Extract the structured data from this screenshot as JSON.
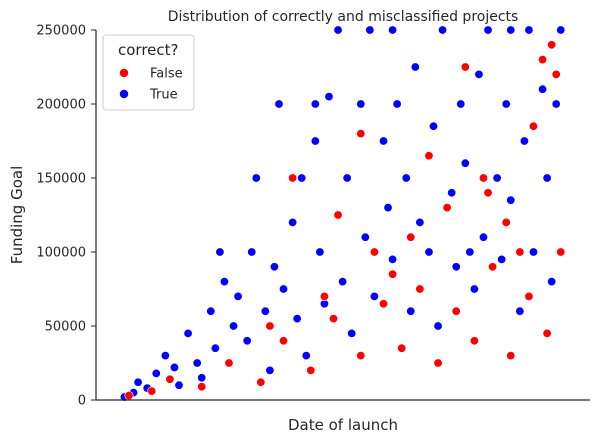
{
  "chart_data": {
    "type": "scatter",
    "title": "Distribution of correctly and misclassified projects",
    "xlabel": "Date of launch",
    "ylabel": "Funding Goal",
    "ylim": [
      0,
      250000
    ],
    "yticks": [
      "0",
      "50000",
      "100000",
      "150000",
      "200000",
      "250000"
    ],
    "xticks_shown": false,
    "grid": false,
    "legend": {
      "title": "correct?",
      "placement": "top-left",
      "entries": [
        {
          "label": "False",
          "color": "#ff0000"
        },
        {
          "label": "True",
          "color": "#0000ff"
        }
      ]
    },
    "series": [
      {
        "name": "True",
        "color": "#0000ff",
        "points": [
          [
            0.03,
            2000
          ],
          [
            0.05,
            5000
          ],
          [
            0.06,
            12000
          ],
          [
            0.08,
            8000
          ],
          [
            0.1,
            18000
          ],
          [
            0.12,
            30000
          ],
          [
            0.14,
            22000
          ],
          [
            0.15,
            10000
          ],
          [
            0.17,
            45000
          ],
          [
            0.19,
            25000
          ],
          [
            0.2,
            15000
          ],
          [
            0.22,
            60000
          ],
          [
            0.23,
            35000
          ],
          [
            0.24,
            100000
          ],
          [
            0.25,
            80000
          ],
          [
            0.27,
            50000
          ],
          [
            0.28,
            70000
          ],
          [
            0.3,
            40000
          ],
          [
            0.31,
            100000
          ],
          [
            0.32,
            150000
          ],
          [
            0.34,
            60000
          ],
          [
            0.35,
            20000
          ],
          [
            0.36,
            90000
          ],
          [
            0.37,
            200000
          ],
          [
            0.38,
            75000
          ],
          [
            0.4,
            120000
          ],
          [
            0.41,
            55000
          ],
          [
            0.42,
            150000
          ],
          [
            0.43,
            30000
          ],
          [
            0.45,
            175000
          ],
          [
            0.46,
            100000
          ],
          [
            0.47,
            65000
          ],
          [
            0.48,
            205000
          ],
          [
            0.5,
            125000
          ],
          [
            0.51,
            80000
          ],
          [
            0.52,
            150000
          ],
          [
            0.53,
            45000
          ],
          [
            0.55,
            200000
          ],
          [
            0.56,
            110000
          ],
          [
            0.57,
            250000
          ],
          [
            0.58,
            70000
          ],
          [
            0.6,
            175000
          ],
          [
            0.61,
            130000
          ],
          [
            0.62,
            95000
          ],
          [
            0.63,
            200000
          ],
          [
            0.65,
            150000
          ],
          [
            0.66,
            60000
          ],
          [
            0.67,
            225000
          ],
          [
            0.68,
            120000
          ],
          [
            0.7,
            100000
          ],
          [
            0.71,
            185000
          ],
          [
            0.72,
            50000
          ],
          [
            0.73,
            250000
          ],
          [
            0.75,
            140000
          ],
          [
            0.76,
            90000
          ],
          [
            0.77,
            200000
          ],
          [
            0.78,
            160000
          ],
          [
            0.8,
            75000
          ],
          [
            0.81,
            220000
          ],
          [
            0.82,
            110000
          ],
          [
            0.83,
            250000
          ],
          [
            0.85,
            150000
          ],
          [
            0.86,
            95000
          ],
          [
            0.87,
            200000
          ],
          [
            0.88,
            135000
          ],
          [
            0.9,
            60000
          ],
          [
            0.91,
            175000
          ],
          [
            0.92,
            250000
          ],
          [
            0.93,
            100000
          ],
          [
            0.95,
            210000
          ],
          [
            0.96,
            150000
          ],
          [
            0.97,
            80000
          ],
          [
            0.98,
            200000
          ],
          [
            0.99,
            250000
          ],
          [
            0.5,
            250000
          ],
          [
            0.62,
            250000
          ],
          [
            0.88,
            250000
          ],
          [
            0.45,
            200000
          ],
          [
            0.58,
            100000
          ],
          [
            0.79,
            100000
          ]
        ]
      },
      {
        "name": "False",
        "color": "#ff0000",
        "points": [
          [
            0.04,
            3000
          ],
          [
            0.09,
            6000
          ],
          [
            0.13,
            14000
          ],
          [
            0.2,
            9000
          ],
          [
            0.26,
            25000
          ],
          [
            0.33,
            12000
          ],
          [
            0.38,
            40000
          ],
          [
            0.44,
            20000
          ],
          [
            0.49,
            55000
          ],
          [
            0.55,
            30000
          ],
          [
            0.6,
            65000
          ],
          [
            0.64,
            35000
          ],
          [
            0.68,
            75000
          ],
          [
            0.72,
            25000
          ],
          [
            0.76,
            60000
          ],
          [
            0.8,
            40000
          ],
          [
            0.84,
            90000
          ],
          [
            0.88,
            30000
          ],
          [
            0.92,
            70000
          ],
          [
            0.96,
            45000
          ],
          [
            0.4,
            150000
          ],
          [
            0.5,
            125000
          ],
          [
            0.55,
            180000
          ],
          [
            0.66,
            110000
          ],
          [
            0.7,
            165000
          ],
          [
            0.74,
            130000
          ],
          [
            0.78,
            225000
          ],
          [
            0.83,
            140000
          ],
          [
            0.87,
            120000
          ],
          [
            0.9,
            100000
          ],
          [
            0.93,
            185000
          ],
          [
            0.95,
            230000
          ],
          [
            0.97,
            240000
          ],
          [
            0.98,
            220000
          ],
          [
            0.82,
            150000
          ],
          [
            0.58,
            100000
          ],
          [
            0.62,
            85000
          ],
          [
            0.35,
            50000
          ],
          [
            0.47,
            70000
          ],
          [
            0.99,
            100000
          ]
        ]
      }
    ]
  }
}
